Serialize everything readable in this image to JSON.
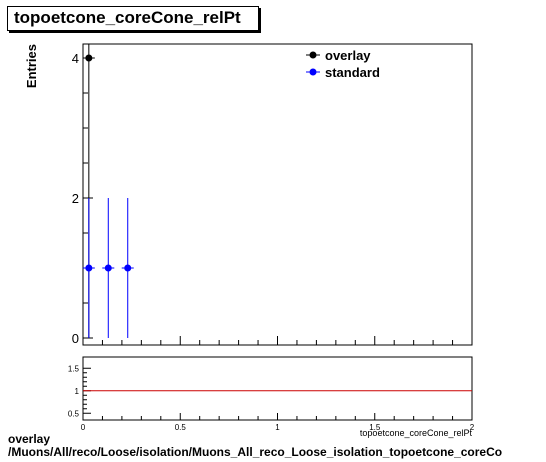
{
  "title": "topoetcone_coreCone_relPt",
  "footer": {
    "line1": "overlay",
    "line2": "/Muons/All/reco/Loose/isolation/Muons_All_reco_Loose_isolation_topoetcone_coreCo"
  },
  "chart_data": [
    {
      "type": "scatter",
      "ylabel": "Entries",
      "xlabel": "",
      "xlim": [
        0,
        2
      ],
      "ylim": [
        -0.1,
        4.2
      ],
      "yticks": [
        "0",
        "2",
        "4"
      ],
      "legend_position": "top-right",
      "series": [
        {
          "name": "overlay",
          "color": "#000000",
          "points": [
            {
              "x": 0.03,
              "y": 4,
              "yerr": 4
            }
          ]
        },
        {
          "name": "standard",
          "color": "#0000ff",
          "points": [
            {
              "x": 0.03,
              "y": 1,
              "yerr": 1
            },
            {
              "x": 0.13,
              "y": 1,
              "yerr": 1
            },
            {
              "x": 0.23,
              "y": 1,
              "yerr": 1
            }
          ]
        }
      ]
    },
    {
      "type": "line",
      "ylabel": "",
      "xlabel": "topoetcone_coreCone_relPt",
      "xlim": [
        0,
        2
      ],
      "ylim": [
        0.35,
        1.75
      ],
      "xticks": [
        "0",
        "0.5",
        "1",
        "1.5",
        "2"
      ],
      "yticks": [
        "0.5",
        "1",
        "1.5"
      ],
      "reference_line": 1,
      "reference_color": "#cc0000"
    }
  ]
}
